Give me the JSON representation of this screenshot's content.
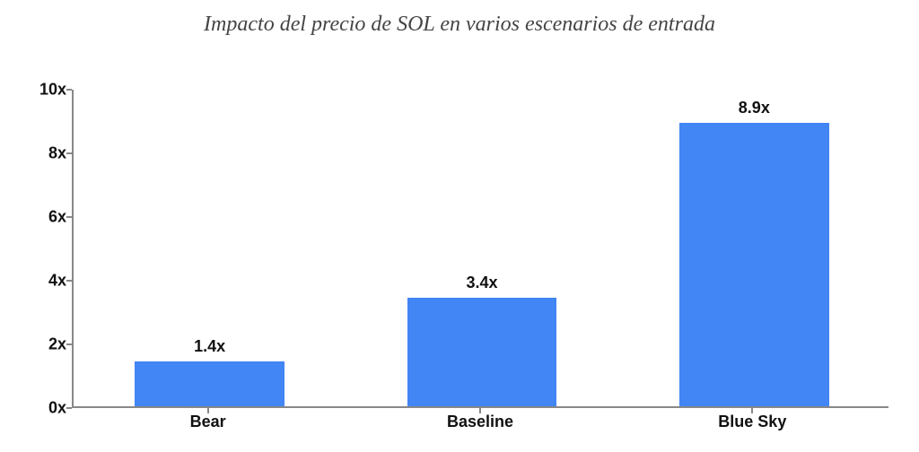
{
  "title": {
    "text": "Impacto del precio de SOL en varios escenarios de entrada",
    "fontsize": 24,
    "font_family": "Georgia, serif",
    "font_style": "italic",
    "color": "#444444"
  },
  "chart": {
    "type": "bar",
    "categories": [
      "Bear",
      "Baseline",
      "Blue Sky"
    ],
    "values": [
      1.4,
      3.4,
      8.9
    ],
    "value_labels": [
      "1.4x",
      "3.4x",
      "8.9x"
    ],
    "bar_colors": [
      "#4285f4",
      "#4285f4",
      "#4285f4"
    ],
    "bar_width": 0.55,
    "ylim": [
      0,
      10
    ],
    "ytick_step": 2,
    "ytick_labels": [
      "0x",
      "2x",
      "4x",
      "6x",
      "8x",
      "10x"
    ],
    "ytick_values": [
      0,
      2,
      4,
      6,
      8,
      10
    ],
    "axis_color": "#888888",
    "background_color": "#ffffff",
    "tick_label_fontsize": 18,
    "tick_label_weight": "bold",
    "value_label_fontsize": 18,
    "value_label_weight": "bold",
    "value_label_color": "#111111",
    "category_label_fontsize": 18,
    "category_label_weight": "bold",
    "grid": false
  }
}
